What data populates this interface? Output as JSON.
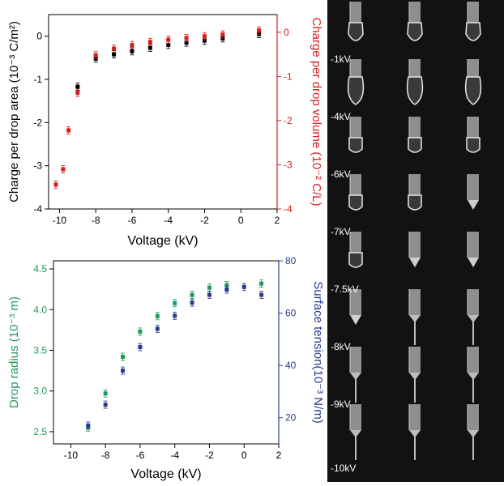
{
  "chart_data": [
    {
      "type": "scatter",
      "title": "",
      "xlabel": "Voltage (kV)",
      "ylabel_left": "Charge per drop area (10⁻³ C/m²)",
      "ylabel_right": "Charge per drop volume (10⁻² C/L)",
      "xlim": [
        -10.6,
        2
      ],
      "ylim_left": [
        -4.0,
        0.5
      ],
      "ylim_right": [
        -4,
        0.4
      ],
      "xticks": [
        "-10",
        "-8",
        "-6",
        "-4",
        "-2",
        "0",
        "2"
      ],
      "yticks_left": [
        "-4",
        "-3",
        "-2",
        "-1",
        "0"
      ],
      "yticks_right": [
        "-4",
        "-3",
        "-2",
        "-1",
        "0"
      ],
      "colors": {
        "left": "#000000",
        "right": "#d62020"
      },
      "series": [
        {
          "axis": "left",
          "x": [
            -9,
            -8,
            -7,
            -6,
            -5,
            -4,
            -3,
            -2,
            -1,
            1
          ],
          "y": [
            -1.17,
            -0.52,
            -0.42,
            -0.35,
            -0.27,
            -0.2,
            -0.15,
            -0.1,
            -0.05,
            0.05
          ]
        },
        {
          "axis": "right",
          "x": [
            -10.2,
            -9.8,
            -9.5,
            -9,
            -8,
            -7,
            -6,
            -5,
            -4,
            -3,
            -2,
            -1,
            1
          ],
          "y": [
            -3.45,
            -3.1,
            -2.22,
            -1.37,
            -0.52,
            -0.37,
            -0.29,
            -0.22,
            -0.17,
            -0.13,
            -0.09,
            -0.05,
            0.04
          ]
        }
      ]
    },
    {
      "type": "scatter",
      "title": "",
      "xlabel": "Voltage (kV)",
      "ylabel_left": "Drop radius (10⁻³ m)",
      "ylabel_right": "Surface tension(10⁻³ N/m)",
      "xlim": [
        -11,
        2
      ],
      "ylim_left": [
        2.35,
        4.6
      ],
      "ylim_right": [
        10,
        80
      ],
      "xticks": [
        "-10",
        "-8",
        "-6",
        "-4",
        "-2",
        "0",
        "2"
      ],
      "yticks_left": [
        "2.5",
        "3.0",
        "3.5",
        "4.0",
        "4.5"
      ],
      "yticks_right": [
        "20",
        "40",
        "60",
        "80"
      ],
      "colors": {
        "left": "#1e9a5a",
        "right": "#2b3c8f"
      },
      "series": [
        {
          "axis": "left",
          "x": [
            -9,
            -8,
            -7,
            -6,
            -5,
            -4,
            -3,
            -2,
            -1,
            1
          ],
          "y": [
            2.55,
            2.97,
            3.42,
            3.73,
            3.92,
            4.08,
            4.18,
            4.27,
            4.3,
            4.32
          ]
        },
        {
          "axis": "right",
          "x": [
            -9,
            -8,
            -7,
            -6,
            -5,
            -4,
            -3,
            -2,
            -1,
            0,
            1
          ],
          "y": [
            17,
            25,
            38,
            47,
            54,
            59,
            64,
            67,
            69,
            70,
            67
          ]
        }
      ]
    }
  ],
  "photo_labels": [
    "-1kV",
    "-4kV",
    "-6kV",
    "-7kV",
    "-7.5kV",
    "-8kV",
    "-9kV",
    "-10kV"
  ]
}
